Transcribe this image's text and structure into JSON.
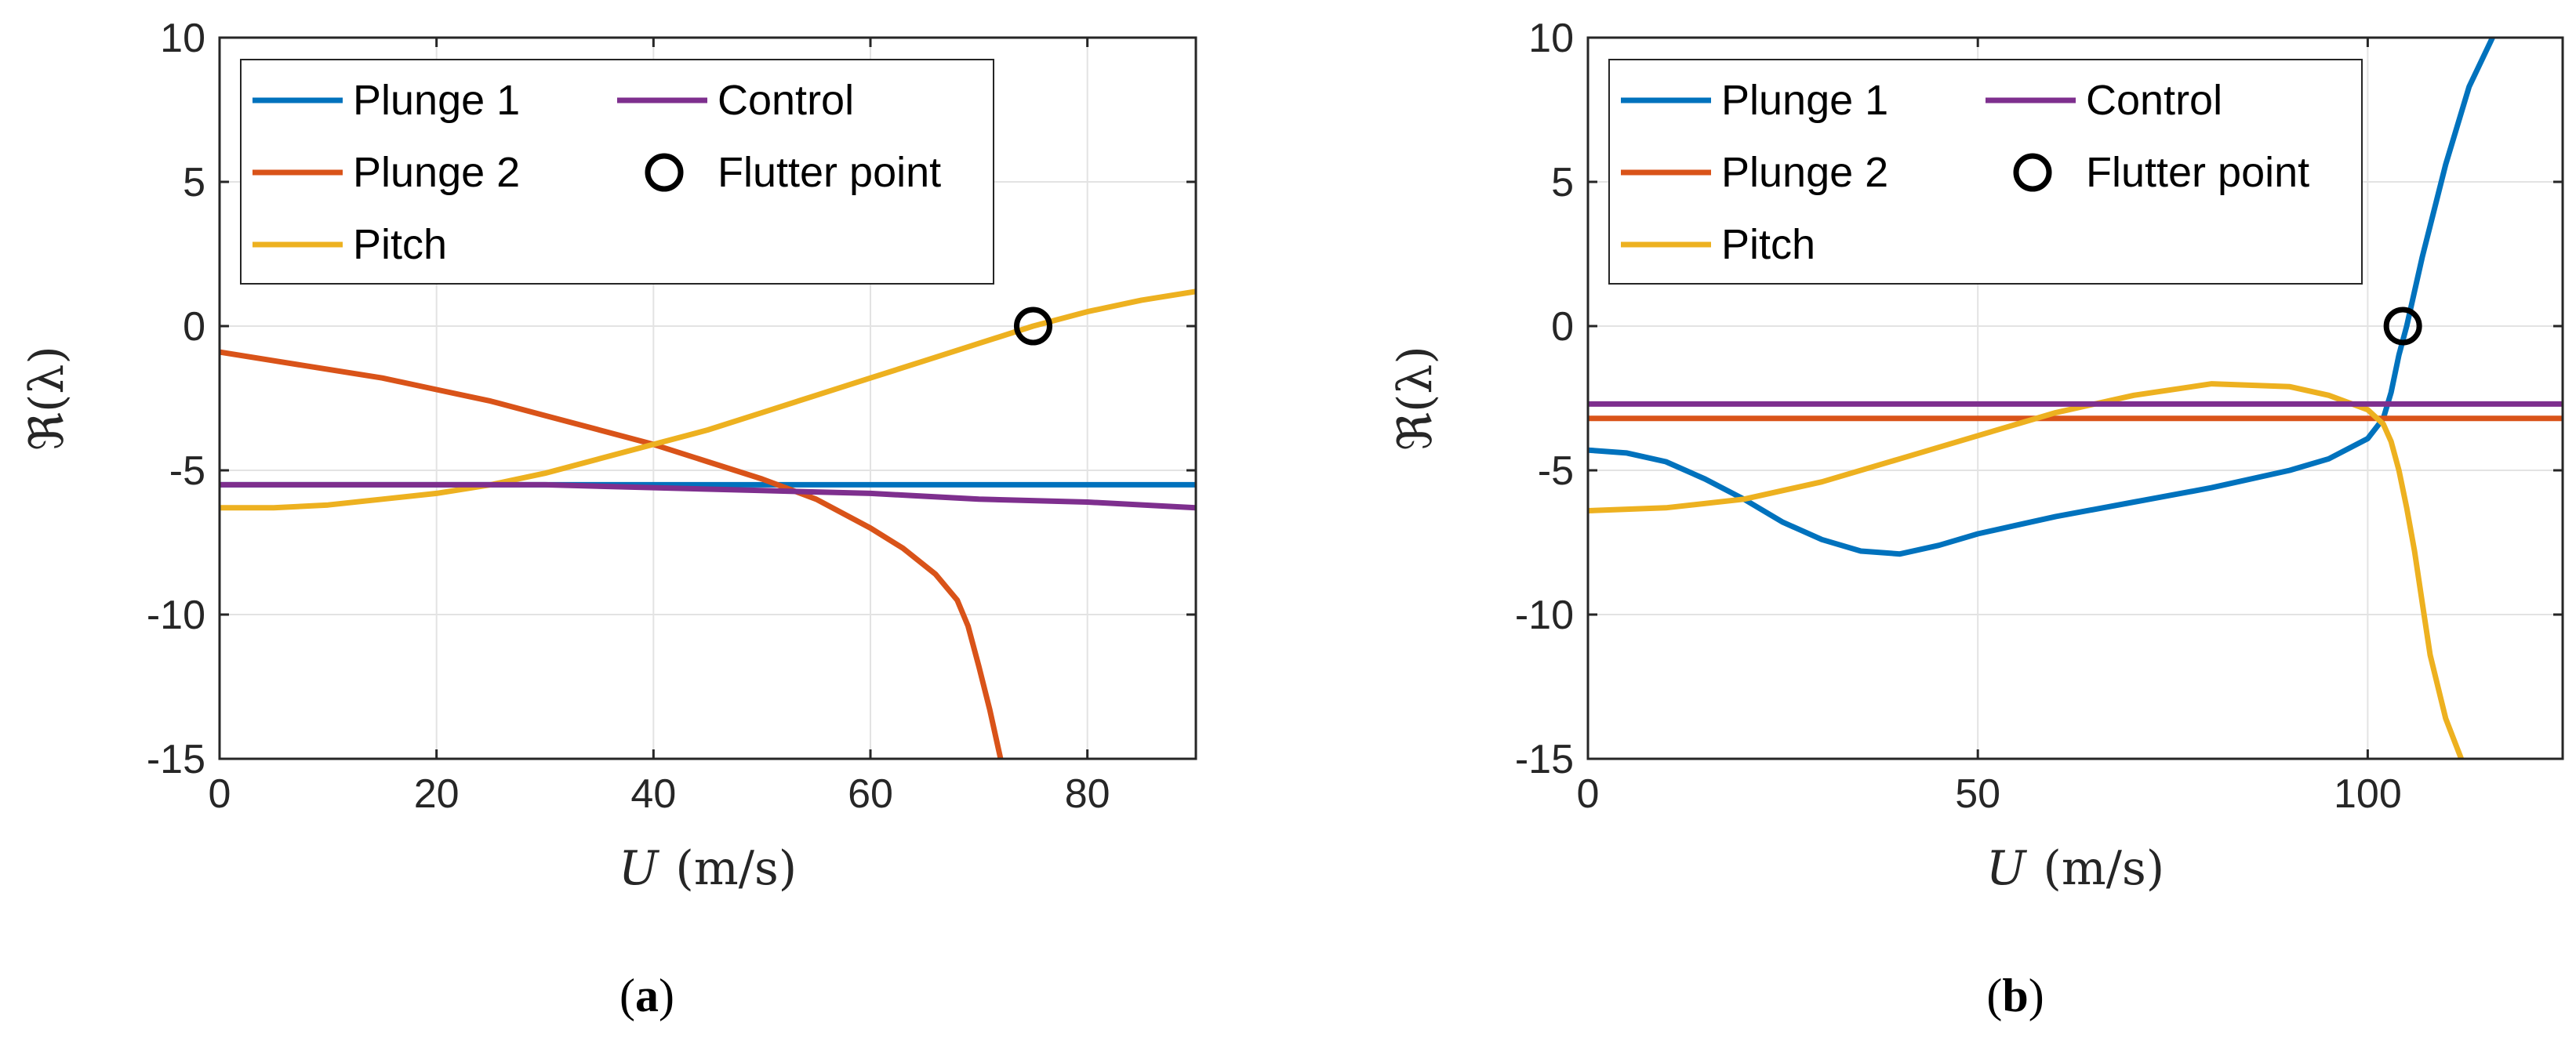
{
  "chart_data": [
    {
      "id": "a",
      "type": "line",
      "caption": {
        "open": "(",
        "letter": "a",
        "close": ")"
      },
      "xlabel": {
        "symbol": "U",
        "unit": "(m/s)"
      },
      "ylabel": {
        "symbol": "ℜ",
        "arg": "(λ)"
      },
      "xlim": [
        0,
        90
      ],
      "ylim": [
        -15,
        10
      ],
      "xticks": [
        0,
        20,
        40,
        60,
        80
      ],
      "yticks": [
        -15,
        -10,
        -5,
        0,
        5,
        10
      ],
      "ytick_labels": [
        "-15",
        "-10",
        "-5",
        "0",
        "5",
        "10"
      ],
      "grid": true,
      "legend": {
        "position": "top-left",
        "columns": 2
      },
      "series": [
        {
          "name": "Plunge 1",
          "color": "#0072BD",
          "x": [
            0,
            10,
            20,
            30,
            40,
            50,
            60,
            70,
            80,
            90
          ],
          "y": [
            -5.5,
            -5.5,
            -5.5,
            -5.5,
            -5.5,
            -5.5,
            -5.5,
            -5.5,
            -5.5,
            -5.5
          ]
        },
        {
          "name": "Plunge 2",
          "color": "#D95319",
          "x": [
            0,
            5,
            10,
            15,
            20,
            25,
            30,
            35,
            40,
            45,
            50,
            55,
            60,
            63,
            66,
            68,
            69,
            70,
            71,
            72
          ],
          "y": [
            -0.9,
            -1.2,
            -1.5,
            -1.8,
            -2.2,
            -2.6,
            -3.1,
            -3.6,
            -4.1,
            -4.7,
            -5.3,
            -6.0,
            -7.0,
            -7.7,
            -8.6,
            -9.5,
            -10.4,
            -11.8,
            -13.3,
            -15.0
          ]
        },
        {
          "name": "Pitch",
          "color": "#EDB120",
          "x": [
            0,
            5,
            10,
            15,
            20,
            25,
            30,
            35,
            40,
            45,
            50,
            55,
            60,
            65,
            70,
            75,
            80,
            85,
            90
          ],
          "y": [
            -6.3,
            -6.3,
            -6.2,
            -6.0,
            -5.8,
            -5.5,
            -5.1,
            -4.6,
            -4.1,
            -3.6,
            -3.0,
            -2.4,
            -1.8,
            -1.2,
            -0.6,
            0.0,
            0.5,
            0.9,
            1.2
          ]
        },
        {
          "name": "Control",
          "color": "#7E2F8E",
          "x": [
            0,
            10,
            20,
            30,
            40,
            50,
            60,
            70,
            80,
            90
          ],
          "y": [
            -5.5,
            -5.5,
            -5.5,
            -5.5,
            -5.6,
            -5.7,
            -5.8,
            -6.0,
            -6.1,
            -6.3
          ]
        }
      ],
      "markers": [
        {
          "name": "Flutter point",
          "x": 75,
          "y": 0
        }
      ]
    },
    {
      "id": "b",
      "type": "line",
      "caption": {
        "open": "(",
        "letter": "b",
        "close": ")"
      },
      "xlabel": {
        "symbol": "U",
        "unit": "(m/s)"
      },
      "ylabel": {
        "symbol": "ℜ",
        "arg": "(λ)"
      },
      "xlim": [
        0,
        125
      ],
      "ylim": [
        -15,
        10
      ],
      "xticks": [
        0,
        50,
        100
      ],
      "yticks": [
        -15,
        -10,
        -5,
        0,
        5,
        10
      ],
      "ytick_labels": [
        "-15",
        "-10",
        "-5",
        "0",
        "5",
        "10"
      ],
      "grid": true,
      "legend": {
        "position": "top-left",
        "columns": 2
      },
      "series": [
        {
          "name": "Plunge 1",
          "color": "#0072BD",
          "x": [
            0,
            5,
            10,
            15,
            20,
            25,
            30,
            35,
            40,
            45,
            50,
            55,
            60,
            70,
            80,
            90,
            95,
            100,
            102,
            103,
            104,
            105,
            107,
            110,
            113,
            116
          ],
          "y": [
            -4.3,
            -4.4,
            -4.7,
            -5.3,
            -6.0,
            -6.8,
            -7.4,
            -7.8,
            -7.9,
            -7.6,
            -7.2,
            -6.9,
            -6.6,
            -6.1,
            -5.6,
            -5.0,
            -4.6,
            -3.9,
            -3.2,
            -2.3,
            -1.0,
            0.0,
            2.4,
            5.6,
            8.3,
            10.0
          ]
        },
        {
          "name": "Plunge 2",
          "color": "#D95319",
          "x": [
            0,
            125
          ],
          "y": [
            -3.2,
            -3.2
          ]
        },
        {
          "name": "Pitch",
          "color": "#EDB120",
          "x": [
            0,
            10,
            20,
            30,
            40,
            50,
            60,
            70,
            80,
            90,
            95,
            100,
            102,
            103,
            104,
            105,
            106,
            107,
            108,
            110,
            112
          ],
          "y": [
            -6.4,
            -6.3,
            -6.0,
            -5.4,
            -4.6,
            -3.8,
            -3.0,
            -2.4,
            -2.0,
            -2.1,
            -2.4,
            -2.9,
            -3.4,
            -4.0,
            -5.0,
            -6.3,
            -7.8,
            -9.6,
            -11.4,
            -13.6,
            -15.0
          ]
        },
        {
          "name": "Control",
          "color": "#7E2F8E",
          "x": [
            0,
            125
          ],
          "y": [
            -2.7,
            -2.7
          ]
        }
      ],
      "markers": [
        {
          "name": "Flutter point",
          "x": 104.5,
          "y": 0
        }
      ]
    }
  ]
}
